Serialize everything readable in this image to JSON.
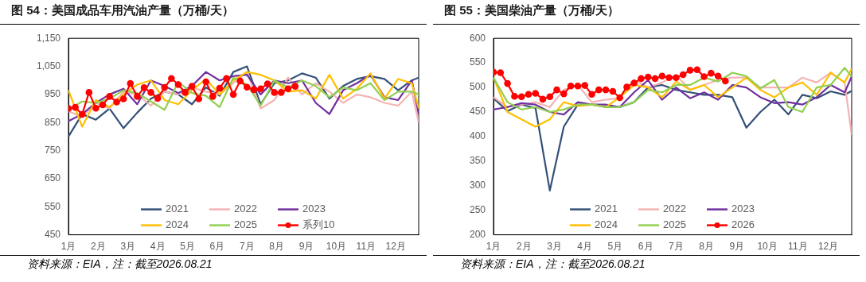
{
  "chart_data": [
    {
      "type": "line",
      "title": "图 54：美国成品车用汽油产量（万桶/天）",
      "annotations": [
        "资料来源：EIA，注：截至2026.08.21"
      ],
      "xlim": [
        1,
        12.77
      ],
      "xticks": [
        {
          "value": 1,
          "label": "1月"
        },
        {
          "value": 2,
          "label": "2月"
        },
        {
          "value": 3,
          "label": "3月"
        },
        {
          "value": 4,
          "label": "4月"
        },
        {
          "value": 5,
          "label": "5月"
        },
        {
          "value": 6,
          "label": "6月"
        },
        {
          "value": 7,
          "label": "7月"
        },
        {
          "value": 8,
          "label": "8月"
        },
        {
          "value": 9,
          "label": "9月"
        },
        {
          "value": 10,
          "label": "10月"
        },
        {
          "value": 11,
          "label": "11月"
        },
        {
          "value": 12,
          "label": "12月"
        }
      ],
      "ylim": [
        450,
        1150
      ],
      "yticks": [
        450,
        550,
        650,
        750,
        850,
        950,
        {
          "value": 1050,
          "label": "1,050"
        },
        {
          "value": 1150,
          "label": "1,150"
        }
      ],
      "legend": "bottom",
      "marker": "none",
      "x": [
        1,
        1.46,
        1.92,
        2.38,
        2.85,
        3.31,
        3.77,
        4.23,
        4.69,
        5.15,
        5.62,
        6.08,
        6.54,
        7.0,
        7.46,
        7.92,
        8.38,
        8.85,
        9.31,
        9.77,
        10.23,
        10.69,
        11.15,
        11.62,
        12.08,
        12.54,
        12.77
      ],
      "series": [
        {
          "name": "2021",
          "color": "#335078",
          "values": [
            800,
            880,
            860,
            900,
            830,
            885,
            935,
            960,
            950,
            915,
            975,
            945,
            1030,
            1050,
            915,
            990,
            1000,
            1025,
            1010,
            935,
            980,
            1005,
            1015,
            1005,
            965,
            1000,
            1010
          ]
        },
        {
          "name": "2022",
          "color": "#f6b3b3",
          "values": [
            890,
            870,
            920,
            900,
            960,
            950,
            910,
            960,
            950,
            975,
            960,
            950,
            990,
            1030,
            900,
            930,
            1010,
            950,
            990,
            960,
            920,
            950,
            940,
            920,
            910,
            960,
            850
          ]
        },
        {
          "name": "2023",
          "color": "#7030a0",
          "values": [
            855,
            880,
            920,
            950,
            970,
            915,
            1000,
            980,
            955,
            980,
            1030,
            1000,
            1015,
            1020,
            950,
            1000,
            990,
            1000,
            920,
            880,
            965,
            990,
            1020,
            940,
            930,
            1000,
            880
          ]
        },
        {
          "name": "2024",
          "color": "#ffc000",
          "values": [
            965,
            835,
            930,
            905,
            950,
            985,
            1000,
            930,
            915,
            965,
            1005,
            950,
            1000,
            1030,
            1020,
            1000,
            960,
            965,
            935,
            1020,
            935,
            970,
            1025,
            935,
            1005,
            990,
            900
          ]
        },
        {
          "name": "2025",
          "color": "#92d050",
          "values": [
            895,
            925,
            920,
            935,
            965,
            955,
            925,
            895,
            995,
            955,
            945,
            905,
            1010,
            985,
            910,
            1000,
            975,
            1000,
            980,
            940,
            975,
            965,
            990,
            930,
            960,
            960,
            950
          ]
        },
        {
          "name": "系列10",
          "color": "#ff0000",
          "marker": "circle",
          "x": [
            1,
            1.23,
            1.46,
            1.69,
            1.92,
            2.15,
            2.38,
            2.62,
            2.85,
            3.08,
            3.31,
            3.54,
            3.77,
            4.0,
            4.23,
            4.46,
            4.69,
            4.92,
            5.15,
            5.38,
            5.62,
            5.85,
            6.08,
            6.31,
            6.54,
            6.77,
            7.0,
            7.23,
            7.46,
            7.69,
            7.92,
            8.15,
            8.38,
            8.62
          ],
          "values": [
            900,
            904,
            879,
            957,
            901,
            913,
            943,
            923,
            934,
            989,
            943,
            974,
            957,
            936,
            975,
            1007,
            985,
            957,
            979,
            934,
            995,
            943,
            972,
            1007,
            950,
            998,
            976,
            967,
            970,
            988,
            957,
            957,
            970,
            979
          ]
        }
      ]
    },
    {
      "type": "line",
      "title": "图 55：美国柴油产量（万桶/天）",
      "annotations": [
        "资料来源：EIA，注：截至2026.08.21"
      ],
      "xlim": [
        1,
        12.77
      ],
      "xticks": [
        {
          "value": 1,
          "label": "1月"
        },
        {
          "value": 2,
          "label": "2月"
        },
        {
          "value": 3,
          "label": "3月"
        },
        {
          "value": 4,
          "label": "4月"
        },
        {
          "value": 5,
          "label": "5月"
        },
        {
          "value": 6,
          "label": "6月"
        },
        {
          "value": 7,
          "label": "7月"
        },
        {
          "value": 8,
          "label": "8月"
        },
        {
          "value": 9,
          "label": "9月"
        },
        {
          "value": 10,
          "label": "10月"
        },
        {
          "value": 11,
          "label": "11月"
        },
        {
          "value": 12,
          "label": "12月"
        }
      ],
      "ylim": [
        200,
        600
      ],
      "yticks": [
        200,
        250,
        300,
        350,
        400,
        450,
        500,
        550,
        600
      ],
      "legend": "bottom",
      "marker": "none",
      "x": [
        1,
        1.46,
        1.92,
        2.38,
        2.85,
        3.31,
        3.77,
        4.23,
        4.69,
        5.15,
        5.62,
        6.08,
        6.54,
        7.0,
        7.46,
        7.92,
        8.38,
        8.85,
        9.31,
        9.77,
        10.23,
        10.69,
        11.15,
        11.62,
        12.08,
        12.54,
        12.77
      ],
      "series": [
        {
          "name": "2021",
          "color": "#335078",
          "values": [
            478,
            452,
            465,
            458,
            290,
            420,
            465,
            465,
            460,
            460,
            470,
            500,
            505,
            495,
            490,
            485,
            485,
            480,
            418,
            450,
            475,
            445,
            485,
            478,
            492,
            485,
            493
          ]
        },
        {
          "name": "2022",
          "color": "#f6b3b3",
          "values": [
            480,
            460,
            465,
            470,
            460,
            495,
            505,
            470,
            475,
            478,
            515,
            500,
            510,
            525,
            495,
            505,
            515,
            520,
            520,
            500,
            500,
            500,
            520,
            510,
            530,
            510,
            403
          ]
        },
        {
          "name": "2023",
          "color": "#7030a0",
          "values": [
            455,
            460,
            468,
            465,
            450,
            445,
            470,
            465,
            465,
            460,
            490,
            515,
            475,
            500,
            478,
            490,
            475,
            505,
            500,
            480,
            468,
            470,
            465,
            480,
            505,
            490,
            522
          ]
        },
        {
          "name": "2024",
          "color": "#ffc000",
          "values": [
            520,
            450,
            435,
            420,
            435,
            470,
            462,
            465,
            460,
            480,
            505,
            500,
            480,
            512,
            495,
            505,
            480,
            500,
            520,
            495,
            480,
            500,
            510,
            485,
            530,
            510,
            538
          ]
        },
        {
          "name": "2025",
          "color": "#92d050",
          "values": [
            520,
            470,
            455,
            460,
            450,
            455,
            465,
            465,
            460,
            460,
            470,
            495,
            490,
            505,
            505,
            520,
            512,
            530,
            523,
            498,
            515,
            460,
            450,
            500,
            505,
            540,
            522
          ]
        },
        {
          "name": "2026",
          "color": "#ff0000",
          "marker": "circle",
          "x": [
            1,
            1.23,
            1.46,
            1.69,
            1.92,
            2.15,
            2.38,
            2.62,
            2.85,
            3.08,
            3.31,
            3.54,
            3.77,
            4.0,
            4.23,
            4.46,
            4.69,
            4.92,
            5.15,
            5.38,
            5.62,
            5.85,
            6.08,
            6.31,
            6.54,
            6.77,
            7.0,
            7.23,
            7.46,
            7.69,
            7.92,
            8.15,
            8.38,
            8.62
          ],
          "values": [
            531,
            530,
            508,
            482,
            481,
            486,
            488,
            476,
            481,
            495,
            487,
            503,
            503,
            504,
            486,
            495,
            495,
            492,
            479,
            501,
            509,
            518,
            521,
            518,
            523,
            520,
            520,
            526,
            535,
            536,
            522,
            529,
            523,
            513
          ]
        }
      ]
    }
  ]
}
